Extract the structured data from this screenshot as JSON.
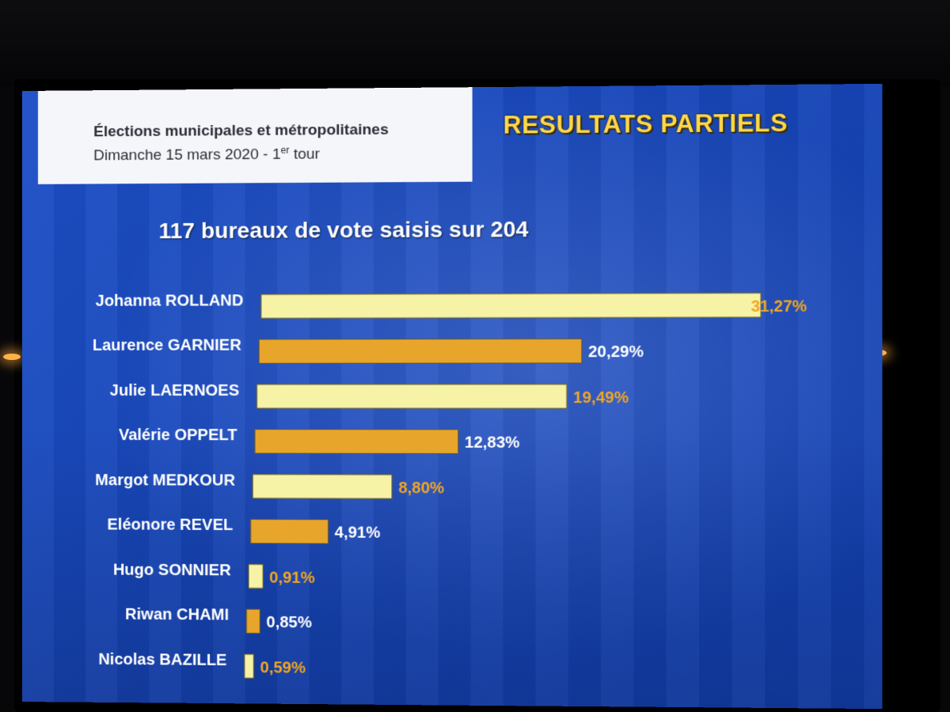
{
  "header": {
    "line1": "Élections municipales et métropolitaines",
    "line2_prefix": "Dimanche 15 mars 2020 - 1",
    "line2_sup": "er",
    "line2_suffix": " tour"
  },
  "title": "RESULTATS PARTIELS",
  "subtitle": "117 bureaux de vote saisis sur 204",
  "colors": {
    "bar_light": "#f7f3a6",
    "bar_orange": "#e8a52c",
    "value_orange": "#f2a623",
    "value_white": "#ffffff",
    "title_yellow": "#ffd84a"
  },
  "chart_data": {
    "type": "bar",
    "orientation": "horizontal",
    "title": "117 bureaux de vote saisis sur 204",
    "categories": [
      "Johanna ROLLAND",
      "Laurence GARNIER",
      "Julie LAERNOES",
      "Valérie OPPELT",
      "Margot MEDKOUR",
      "Eléonore REVEL",
      "Hugo SONNIER",
      "Riwan CHAMI",
      "Nicolas BAZILLE"
    ],
    "values": [
      31.27,
      20.29,
      19.49,
      12.83,
      8.8,
      4.91,
      0.91,
      0.85,
      0.59
    ],
    "value_labels": [
      "31,27%",
      "20,29%",
      "19,49%",
      "12,83%",
      "8,80%",
      "4,91%",
      "0,91%",
      "0,85%",
      "0,59%"
    ],
    "bar_colors": [
      "light",
      "orange",
      "light",
      "orange",
      "light",
      "orange",
      "light",
      "orange",
      "light"
    ],
    "label_colors": [
      "orange",
      "white",
      "orange",
      "white",
      "orange",
      "white",
      "orange",
      "white",
      "orange"
    ],
    "xlim": [
      0,
      31.27
    ],
    "grid": false
  }
}
